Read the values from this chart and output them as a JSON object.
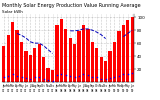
{
  "title1": "Monthly Solar Energy Production Value Running Average",
  "title2": "Solar kWh",
  "bar_color": "#FF0000",
  "dot_color": "#0000FF",
  "avg_color": "#0000BB",
  "background_color": "#FFFFFF",
  "grid_color": "#999999",
  "months": [
    "Jan\n07",
    "Feb\n07",
    "Mar\n07",
    "Apr\n07",
    "May\n07",
    "Jun\n07",
    "Jul\n07",
    "Aug\n07",
    "Sep\n07",
    "Oct\n07",
    "Nov\n07",
    "Dec\n07",
    "Jan\n08",
    "Feb\n08",
    "Mar\n08",
    "Apr\n08",
    "May\n08",
    "Jun\n08",
    "Jul\n08",
    "Aug\n08",
    "Sep\n08",
    "Oct\n08",
    "Nov\n08",
    "Dec\n08",
    "Jan\n09",
    "Feb\n09",
    "Mar\n09",
    "Apr\n09",
    "May\n09",
    "Jun\n09"
  ],
  "values": [
    55,
    72,
    92,
    80,
    62,
    48,
    42,
    52,
    58,
    38,
    22,
    18,
    88,
    98,
    82,
    68,
    58,
    78,
    88,
    82,
    62,
    52,
    38,
    32,
    48,
    62,
    78,
    88,
    95,
    100
  ],
  "dot_values": [
    8,
    10,
    12,
    10,
    8,
    6,
    5,
    7,
    8,
    5,
    3,
    2,
    11,
    13,
    11,
    9,
    8,
    10,
    12,
    11,
    8,
    7,
    5,
    4,
    6,
    8,
    10,
    12,
    13,
    14
  ],
  "avg_values": [
    null,
    null,
    null,
    75,
    72,
    68,
    62,
    60,
    60,
    56,
    50,
    44,
    null,
    null,
    null,
    79,
    79,
    80,
    82,
    82,
    80,
    77,
    73,
    67,
    null,
    null,
    null,
    70,
    75,
    80
  ],
  "ylim": [
    0,
    105
  ],
  "yticks": [
    20,
    40,
    60,
    80,
    100
  ],
  "ylabel_fontsize": 3.5,
  "tick_fontsize": 3.0,
  "title_fontsize": 3.5,
  "bar_width": 0.75
}
